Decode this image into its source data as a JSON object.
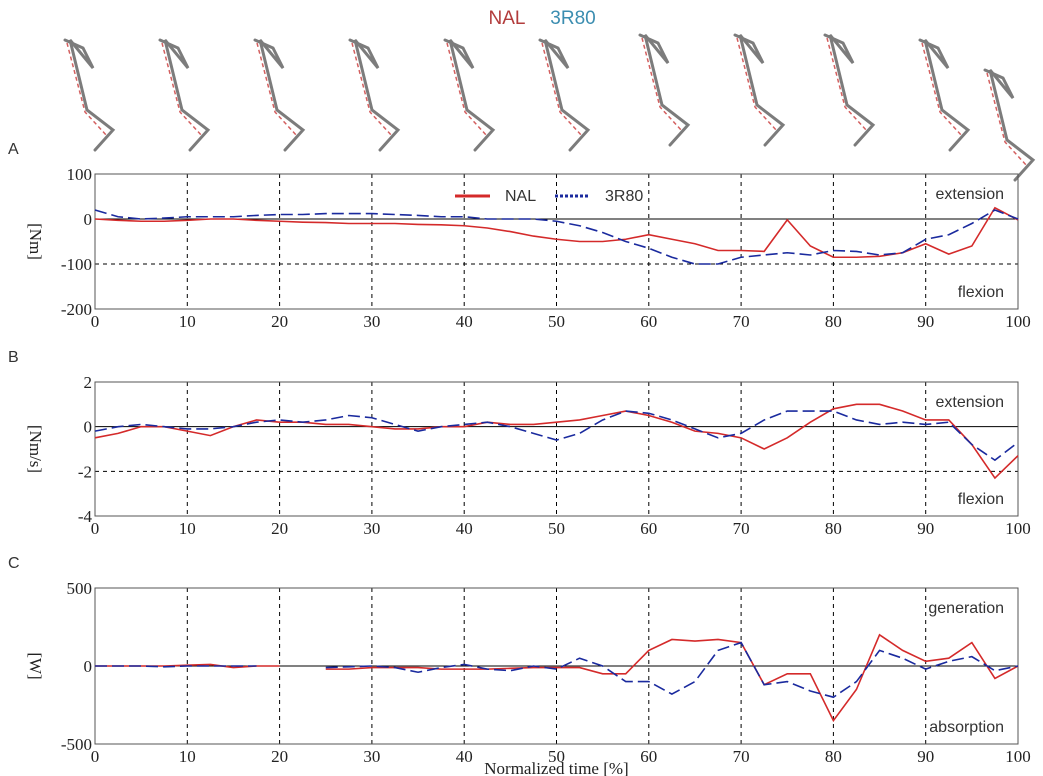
{
  "header": {
    "labels": [
      "NAL",
      "3R80"
    ]
  },
  "chart_data": [
    {
      "type": "line",
      "panel": "A",
      "ylabel": "[Nm]",
      "annotations": [
        "extension",
        "flexion"
      ],
      "legend": "upper center",
      "grid": true,
      "xlim": [
        0,
        100
      ],
      "xticks": [
        0,
        10,
        20,
        30,
        40,
        50,
        60,
        70,
        80,
        90,
        100
      ],
      "ylim": [
        -200,
        100
      ],
      "yticks": [
        100,
        0,
        -100,
        -200
      ],
      "x": [
        0,
        2.5,
        5,
        7.5,
        10,
        12.5,
        15,
        17.5,
        20,
        22.5,
        25,
        27.5,
        30,
        32.5,
        35,
        37.5,
        40,
        42.5,
        45,
        47.5,
        50,
        52.5,
        55,
        57.5,
        60,
        62.5,
        65,
        67.5,
        70,
        72.5,
        75,
        77.5,
        80,
        82.5,
        85,
        87.5,
        90,
        92.5,
        95,
        97.5,
        100
      ],
      "series": [
        {
          "name": "NAL",
          "color": "#d42a2a",
          "dashed": false,
          "values": [
            0,
            -3,
            -5,
            -5,
            -3,
            0,
            0,
            -3,
            -5,
            -7,
            -8,
            -10,
            -10,
            -10,
            -12,
            -13,
            -15,
            -20,
            -28,
            -38,
            -45,
            -50,
            -50,
            -45,
            -35,
            -45,
            -55,
            -70,
            -70,
            -72,
            -2,
            -60,
            -85,
            -85,
            -83,
            -75,
            -55,
            -78,
            -60,
            25,
            -2
          ]
        },
        {
          "name": "3R80",
          "color": "#1a2a9e",
          "dashed": true,
          "values": [
            20,
            5,
            0,
            2,
            5,
            5,
            5,
            8,
            10,
            10,
            12,
            12,
            12,
            10,
            8,
            5,
            5,
            0,
            0,
            0,
            -5,
            -15,
            -30,
            -50,
            -65,
            -85,
            -100,
            -100,
            -85,
            -80,
            -75,
            -80,
            -70,
            -72,
            -80,
            -75,
            -45,
            -35,
            -10,
            20,
            0
          ]
        }
      ]
    },
    {
      "type": "line",
      "panel": "B",
      "ylabel": "[Nm/s]",
      "annotations": [
        "extension",
        "flexion"
      ],
      "grid": true,
      "xlim": [
        0,
        100
      ],
      "xticks": [
        0,
        10,
        20,
        30,
        40,
        50,
        60,
        70,
        80,
        90,
        100
      ],
      "ylim": [
        -4,
        2
      ],
      "yticks": [
        2,
        0,
        -2,
        -4
      ],
      "x": [
        0,
        2.5,
        5,
        7.5,
        10,
        12.5,
        15,
        17.5,
        20,
        22.5,
        25,
        27.5,
        30,
        32.5,
        35,
        37.5,
        40,
        42.5,
        45,
        47.5,
        50,
        52.5,
        55,
        57.5,
        60,
        62.5,
        65,
        67.5,
        70,
        72.5,
        75,
        77.5,
        80,
        82.5,
        85,
        87.5,
        90,
        92.5,
        95,
        97.5,
        100
      ],
      "series": [
        {
          "name": "NAL",
          "color": "#d42a2a",
          "dashed": false,
          "values": [
            -0.5,
            -0.3,
            0,
            0,
            -0.2,
            -0.4,
            0,
            0.3,
            0.2,
            0.2,
            0.1,
            0.1,
            0,
            -0.1,
            -0.1,
            0,
            0,
            0.2,
            0.1,
            0.1,
            0.2,
            0.3,
            0.5,
            0.7,
            0.5,
            0.2,
            -0.2,
            -0.3,
            -0.5,
            -1,
            -0.5,
            0.2,
            0.8,
            1,
            1,
            0.7,
            0.3,
            0.3,
            -0.8,
            -2.3,
            -1.3
          ]
        },
        {
          "name": "3R80",
          "color": "#1a2a9e",
          "dashed": true,
          "values": [
            -0.2,
            0,
            0.1,
            0,
            -0.1,
            -0.1,
            0,
            0.2,
            0.3,
            0.2,
            0.3,
            0.5,
            0.4,
            0.1,
            -0.2,
            0,
            0.1,
            0.2,
            0,
            -0.3,
            -0.6,
            -0.3,
            0.3,
            0.7,
            0.6,
            0.3,
            -0.1,
            -0.5,
            -0.3,
            0.3,
            0.7,
            0.7,
            0.7,
            0.3,
            0.1,
            0.2,
            0.1,
            0.2,
            -0.8,
            -1.5,
            -0.7
          ]
        }
      ]
    },
    {
      "type": "line",
      "panel": "C",
      "ylabel": "[W]",
      "annotations": [
        "generation",
        "absorption"
      ],
      "xlabel": "Normalized time [%]",
      "grid": true,
      "xlim": [
        0,
        100
      ],
      "xticks": [
        0,
        10,
        20,
        30,
        40,
        50,
        60,
        70,
        80,
        90,
        100
      ],
      "ylim": [
        -500,
        500
      ],
      "yticks": [
        500,
        0,
        -500
      ],
      "x": [
        0,
        2.5,
        5,
        7.5,
        10,
        12.5,
        15,
        17.5,
        20,
        22.5,
        25,
        27.5,
        30,
        32.5,
        35,
        37.5,
        40,
        42.5,
        45,
        47.5,
        50,
        52.5,
        55,
        57.5,
        60,
        62.5,
        65,
        67.5,
        70,
        72.5,
        75,
        77.5,
        80,
        82.5,
        85,
        87.5,
        90,
        92.5,
        95,
        97.5,
        100
      ],
      "series": [
        {
          "name": "NAL",
          "color": "#d42a2a",
          "dashed": false,
          "values": [
            0,
            0,
            0,
            0,
            5,
            10,
            -10,
            0,
            0,
            null,
            -20,
            -20,
            -10,
            -10,
            -10,
            -20,
            -20,
            -20,
            -15,
            -10,
            -10,
            -10,
            -50,
            -50,
            100,
            170,
            160,
            170,
            150,
            -120,
            -50,
            -50,
            -350,
            -150,
            200,
            100,
            30,
            50,
            150,
            -80,
            0
          ]
        },
        {
          "name": "3R80",
          "color": "#1a2a9e",
          "dashed": true,
          "values": [
            0,
            0,
            0,
            -5,
            0,
            0,
            0,
            0,
            null,
            null,
            -10,
            -5,
            0,
            -10,
            -40,
            -10,
            10,
            -20,
            -30,
            0,
            -20,
            50,
            0,
            -100,
            -100,
            -180,
            -100,
            100,
            150,
            -120,
            -100,
            -160,
            -200,
            -100,
            100,
            50,
            -20,
            30,
            60,
            -30,
            0
          ]
        }
      ]
    }
  ]
}
